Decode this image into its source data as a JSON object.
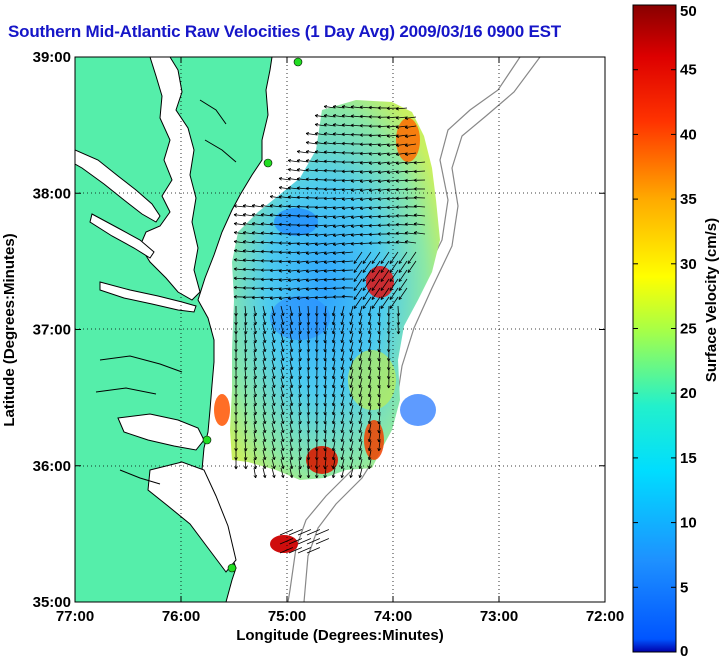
{
  "title": "Southern Mid-Atlantic Raw Velocities (1 Day Avg) 2009/03/16 0900 EST",
  "x_axis": {
    "label": "Longitude (Degrees:Minutes)",
    "ticks": [
      "77:00",
      "76:00",
      "75:00",
      "74:00",
      "73:00",
      "72:00"
    ]
  },
  "y_axis": {
    "label": "Latitude (Degrees:Minutes)",
    "ticks": [
      "39:00",
      "38:00",
      "37:00",
      "36:00",
      "35:00"
    ]
  },
  "colorbar": {
    "label": "Surface Velocity (cm/s)",
    "ticks": [
      "50",
      "45",
      "40",
      "35",
      "30",
      "25",
      "20",
      "15",
      "10",
      "5",
      "0"
    ],
    "min": 0,
    "max": 50,
    "colormap": "jet"
  },
  "colors": {
    "land": "#55eeaa",
    "title": "#1616c8",
    "station": "#22dd22"
  }
}
